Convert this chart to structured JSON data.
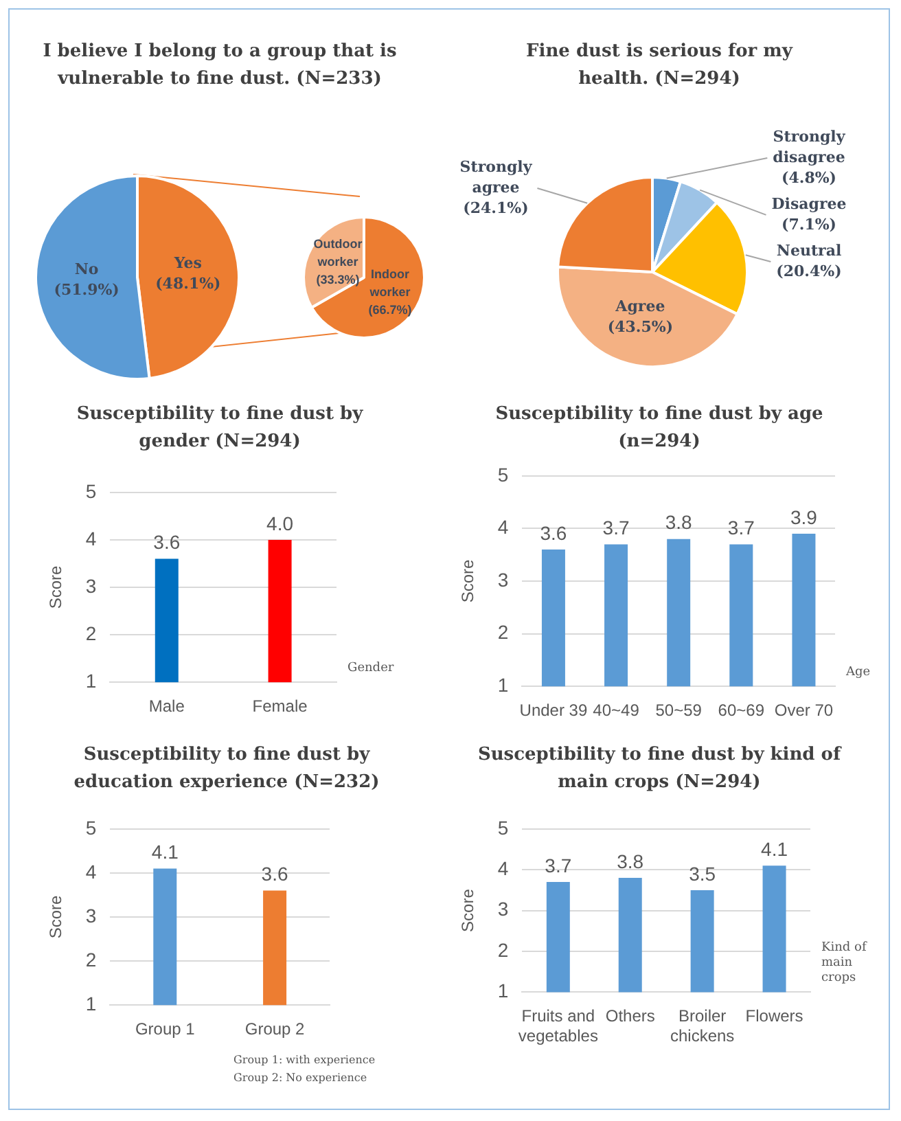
{
  "chart_data": [
    {
      "type": "pie",
      "title": "I believe I belong to a group that is vulnerable to fine dust. (N=233)",
      "categories": [
        "Yes",
        "No"
      ],
      "values": [
        48.1,
        51.9
      ],
      "colors": [
        "#ed7d31",
        "#5b9bd5"
      ],
      "value_labels": [
        "(48.1%)",
        "(51.9%)"
      ]
    },
    {
      "type": "pie",
      "categories": [
        "Indoor worker",
        "Outdoor worker"
      ],
      "values": [
        66.7,
        33.3
      ],
      "colors": [
        "#ed7d31",
        "#f4b183"
      ],
      "value_labels": [
        "(66.7%)",
        "(33.3%)"
      ]
    },
    {
      "type": "pie",
      "title": "Fine dust is serious for my health. (N=294)",
      "categories": [
        "Strongly disagree",
        "Disagree",
        "Neutral",
        "Agree",
        "Strongly agree"
      ],
      "values": [
        4.8,
        7.1,
        20.4,
        43.5,
        24.1
      ],
      "colors": [
        "#5b9bd5",
        "#9dc3e6",
        "#ffc000",
        "#f4b183",
        "#ed7d31"
      ],
      "value_labels": [
        "(4.8%)",
        "(7.1%)",
        "(20.4%)",
        "(43.5%)",
        "(24.1%)"
      ]
    },
    {
      "type": "bar",
      "title": "Susceptibility to fine dust by gender (N=294)",
      "xlabel": "Gender",
      "ylabel": "Score",
      "categories": [
        "Male",
        "Female"
      ],
      "values": [
        3.6,
        4.0
      ],
      "colors": [
        "#0070c0",
        "#ff0000"
      ],
      "value_labels": [
        "3.6",
        "4.0"
      ],
      "ylim": [
        1,
        5
      ],
      "yticks": [
        1,
        2,
        3,
        4,
        5
      ],
      "grid": "y"
    },
    {
      "type": "bar",
      "title": "Susceptibility to fine dust by age (n=294)",
      "xlabel": "Age",
      "ylabel": "Score",
      "categories": [
        "Under 39",
        "40~49",
        "50~59",
        "60~69",
        "Over 70"
      ],
      "values": [
        3.6,
        3.7,
        3.8,
        3.7,
        3.9
      ],
      "colors": [
        "#5b9bd5",
        "#5b9bd5",
        "#5b9bd5",
        "#5b9bd5",
        "#5b9bd5"
      ],
      "value_labels": [
        "3.6",
        "3.7",
        "3.8",
        "3.7",
        "3.9"
      ],
      "ylim": [
        1,
        5
      ],
      "yticks": [
        1,
        2,
        3,
        4,
        5
      ],
      "grid": "y"
    },
    {
      "type": "bar",
      "title": "Susceptibility to fine dust by education experience (N=232)",
      "ylabel": "Score",
      "categories": [
        "Group 1",
        "Group 2"
      ],
      "values": [
        4.1,
        3.6
      ],
      "colors": [
        "#5b9bd5",
        "#ed7d31"
      ],
      "value_labels": [
        "4.1",
        "3.6"
      ],
      "ylim": [
        1,
        5
      ],
      "yticks": [
        1,
        2,
        3,
        4,
        5
      ],
      "grid": "y",
      "annotations": [
        "Group 1: with experience",
        "Group 2: No experience"
      ]
    },
    {
      "type": "bar",
      "title": "Susceptibility to fine dust by kind of main crops (N=294)",
      "xlabel": "Kind of main crops",
      "ylabel": "Score",
      "categories": [
        "Fruits and vegetables",
        "Others",
        "Broiler chickens",
        "Flowers"
      ],
      "values": [
        3.7,
        3.8,
        3.5,
        4.1
      ],
      "colors": [
        "#5b9bd5",
        "#5b9bd5",
        "#5b9bd5",
        "#5b9bd5"
      ],
      "value_labels": [
        "3.7",
        "3.8",
        "3.5",
        "4.1"
      ],
      "ylim": [
        1,
        5
      ],
      "yticks": [
        1,
        2,
        3,
        4,
        5
      ],
      "grid": "y"
    }
  ]
}
